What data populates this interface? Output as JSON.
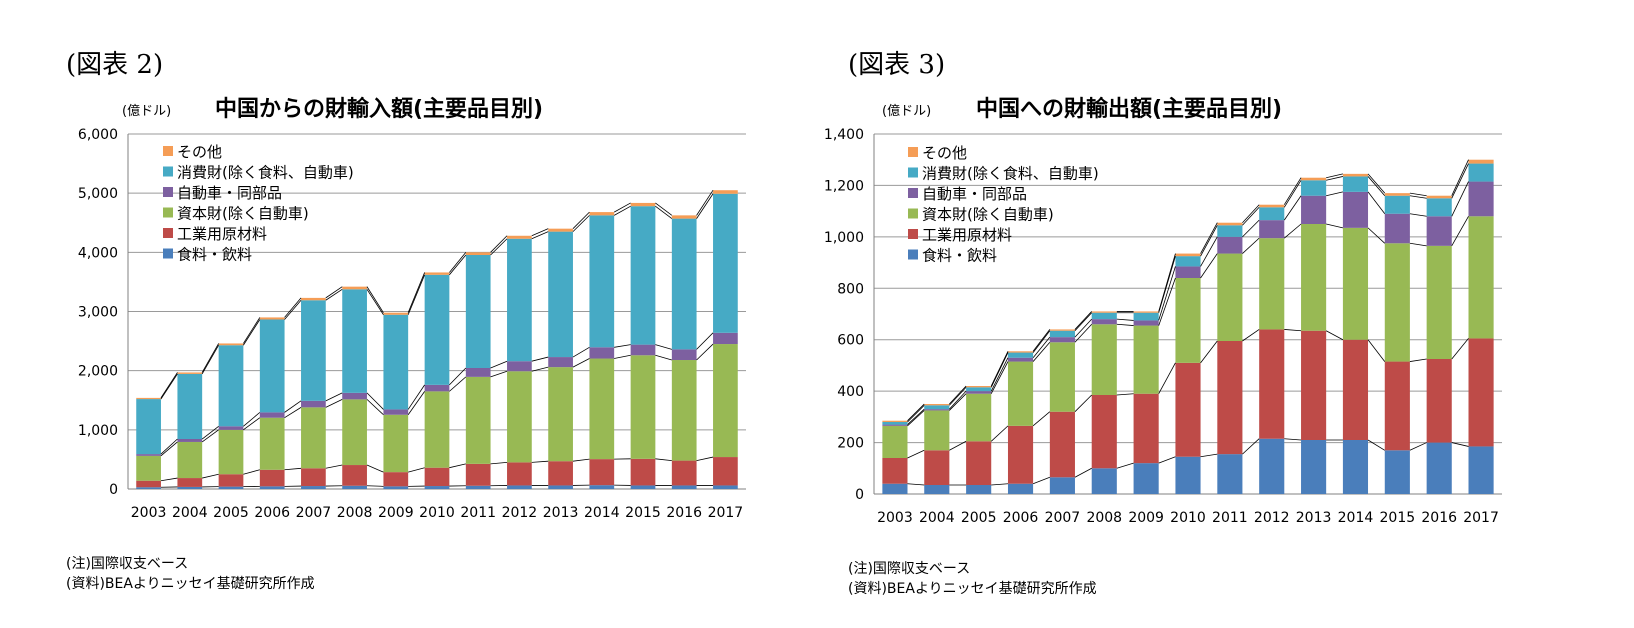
{
  "charts": [
    {
      "figure_label": "(図表 2)",
      "notes": [
        "(注)国際収支ベース",
        "(資料)BEAよりニッセイ基礎研究所作成"
      ]
    },
    {
      "figure_label": "(図表 3)",
      "notes": [
        "(注)国際収支ベース",
        "(資料)BEAよりニッセイ基礎研究所作成"
      ]
    }
  ],
  "colors": {
    "food": "#4a7ebb",
    "industrial": "#be4b48",
    "capital": "#98b954",
    "auto": "#7d60a0",
    "consumer": "#46aac5",
    "other": "#f59d56"
  },
  "chart_data": [
    {
      "type": "bar",
      "stacked": true,
      "title": "中国からの財輸入額(主要品目別)",
      "unit_label": "(億ドル)",
      "categories": [
        "2003",
        "2004",
        "2005",
        "2006",
        "2007",
        "2008",
        "2009",
        "2010",
        "2011",
        "2012",
        "2013",
        "2014",
        "2015",
        "2016",
        "2017"
      ],
      "ylim": [
        0,
        6000
      ],
      "yticks": [
        0,
        1000,
        2000,
        3000,
        4000,
        5000,
        6000
      ],
      "ytick_labels": [
        "0",
        "1,000",
        "2,000",
        "3,000",
        "4,000",
        "5,000",
        "6,000"
      ],
      "legend_position": "top-left",
      "series": [
        {
          "name": "食料・飲料",
          "key": "food",
          "values": [
            30,
            35,
            40,
            45,
            50,
            55,
            45,
            50,
            55,
            60,
            60,
            65,
            60,
            60,
            60
          ]
        },
        {
          "name": "工業用原材料",
          "key": "industrial",
          "values": [
            110,
            150,
            210,
            280,
            300,
            350,
            240,
            310,
            370,
            390,
            410,
            440,
            450,
            420,
            480
          ]
        },
        {
          "name": "資本財(除く自動車)",
          "key": "capital",
          "values": [
            420,
            610,
            750,
            880,
            1030,
            1110,
            970,
            1290,
            1470,
            1540,
            1590,
            1700,
            1750,
            1700,
            1910
          ]
        },
        {
          "name": "自動車・同部品",
          "key": "auto",
          "values": [
            30,
            50,
            60,
            90,
            110,
            110,
            90,
            110,
            150,
            170,
            170,
            190,
            180,
            180,
            190
          ]
        },
        {
          "name": "消費財(除く食料、自動車)",
          "key": "consumer",
          "values": [
            930,
            1100,
            1370,
            1570,
            1700,
            1750,
            1600,
            1860,
            1910,
            2070,
            2120,
            2230,
            2340,
            2210,
            2350
          ]
        },
        {
          "name": "その他",
          "key": "other",
          "values": [
            20,
            25,
            30,
            35,
            40,
            45,
            35,
            40,
            45,
            50,
            50,
            55,
            55,
            55,
            60
          ]
        }
      ]
    },
    {
      "type": "bar",
      "stacked": true,
      "title": "中国への財輸出額(主要品目別)",
      "unit_label": "(億ドル)",
      "categories": [
        "2003",
        "2004",
        "2005",
        "2006",
        "2007",
        "2008",
        "2009",
        "2010",
        "2011",
        "2012",
        "2013",
        "2014",
        "2015",
        "2016",
        "2017"
      ],
      "ylim": [
        0,
        1400
      ],
      "yticks": [
        0,
        200,
        400,
        600,
        800,
        1000,
        1200,
        1400
      ],
      "ytick_labels": [
        "0",
        "200",
        "400",
        "600",
        "800",
        "1,000",
        "1,200",
        "1,400"
      ],
      "legend_position": "top-left",
      "series": [
        {
          "name": "食料・飲料",
          "key": "food",
          "values": [
            40,
            35,
            35,
            40,
            65,
            100,
            120,
            145,
            155,
            215,
            210,
            210,
            170,
            200,
            185
          ]
        },
        {
          "name": "工業用原材料",
          "key": "industrial",
          "values": [
            100,
            135,
            170,
            225,
            255,
            285,
            270,
            365,
            440,
            425,
            425,
            390,
            345,
            325,
            420
          ]
        },
        {
          "name": "資本財(除く自動車)",
          "key": "capital",
          "values": [
            125,
            155,
            185,
            250,
            270,
            275,
            265,
            330,
            340,
            355,
            415,
            435,
            460,
            440,
            475
          ]
        },
        {
          "name": "自動車・同部品",
          "key": "auto",
          "values": [
            5,
            5,
            10,
            15,
            20,
            20,
            20,
            45,
            65,
            70,
            110,
            140,
            115,
            115,
            135
          ]
        },
        {
          "name": "消費財(除く食料、自動車)",
          "key": "consumer",
          "values": [
            10,
            15,
            15,
            20,
            25,
            25,
            30,
            40,
            45,
            50,
            60,
            60,
            70,
            70,
            70
          ]
        },
        {
          "name": "その他",
          "key": "other",
          "values": [
            5,
            5,
            5,
            5,
            5,
            5,
            5,
            10,
            10,
            10,
            10,
            10,
            10,
            10,
            15
          ]
        }
      ]
    }
  ]
}
